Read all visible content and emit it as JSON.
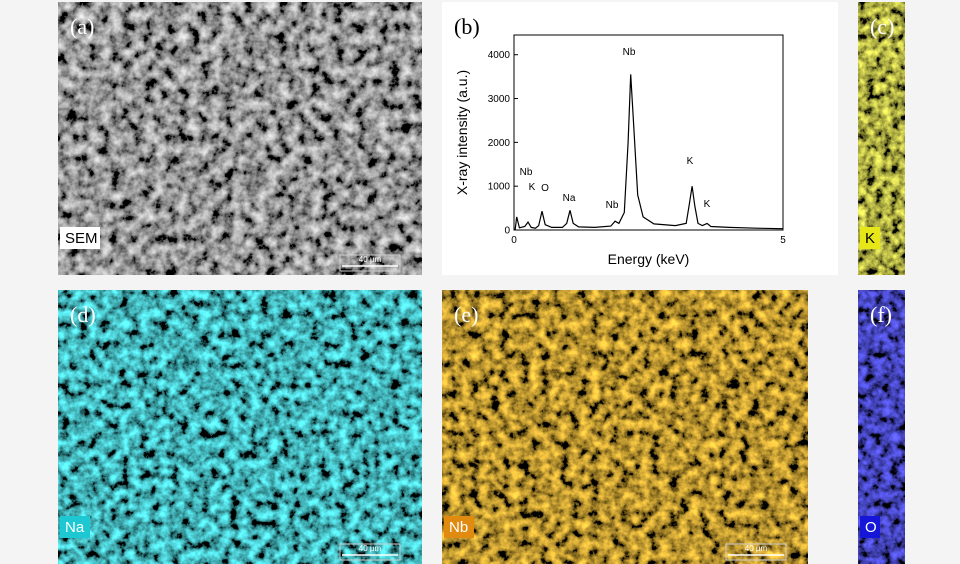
{
  "panels": [
    {
      "label": "(a)",
      "tag": "SEM",
      "scale_bar": "40 µm"
    },
    {
      "label": "(b)"
    },
    {
      "label": "(c)",
      "tag": "K"
    },
    {
      "label": "(d)",
      "tag": "Na",
      "scale_bar": "40 µm"
    },
    {
      "label": "(e)",
      "tag": "Nb",
      "scale_bar": "40 µm"
    },
    {
      "label": "(f)",
      "tag": "O"
    }
  ],
  "spectrum": {
    "type": "line",
    "x_label": "Energy (keV)",
    "y_label": "X-ray intensity (a.u.)",
    "xlim": [
      0,
      5
    ],
    "xticks": [
      0,
      5
    ],
    "ylim": [
      0,
      4450
    ],
    "yticks": [
      0,
      1000,
      2000,
      3000,
      4000
    ],
    "color": "#000000",
    "x": [
      0.02,
      0.05,
      0.1,
      0.2,
      0.26,
      0.32,
      0.4,
      0.46,
      0.52,
      0.58,
      0.7,
      0.9,
      0.98,
      1.04,
      1.1,
      1.2,
      1.5,
      1.8,
      1.88,
      1.95,
      2.05,
      2.12,
      2.17,
      2.22,
      2.3,
      2.4,
      2.6,
      3.0,
      3.2,
      3.26,
      3.31,
      3.36,
      3.42,
      3.5,
      3.59,
      3.66,
      4.0,
      4.5,
      5.0
    ],
    "values": [
      0,
      300,
      50,
      80,
      180,
      60,
      40,
      100,
      430,
      120,
      60,
      60,
      150,
      450,
      150,
      70,
      60,
      90,
      200,
      150,
      400,
      2000,
      3550,
      2500,
      800,
      300,
      140,
      100,
      150,
      600,
      1000,
      550,
      150,
      100,
      150,
      80,
      60,
      40,
      30
    ],
    "annotations": [
      "Nb",
      "K",
      "O",
      "Na",
      "Nb",
      "Nb",
      "K",
      "K"
    ]
  }
}
